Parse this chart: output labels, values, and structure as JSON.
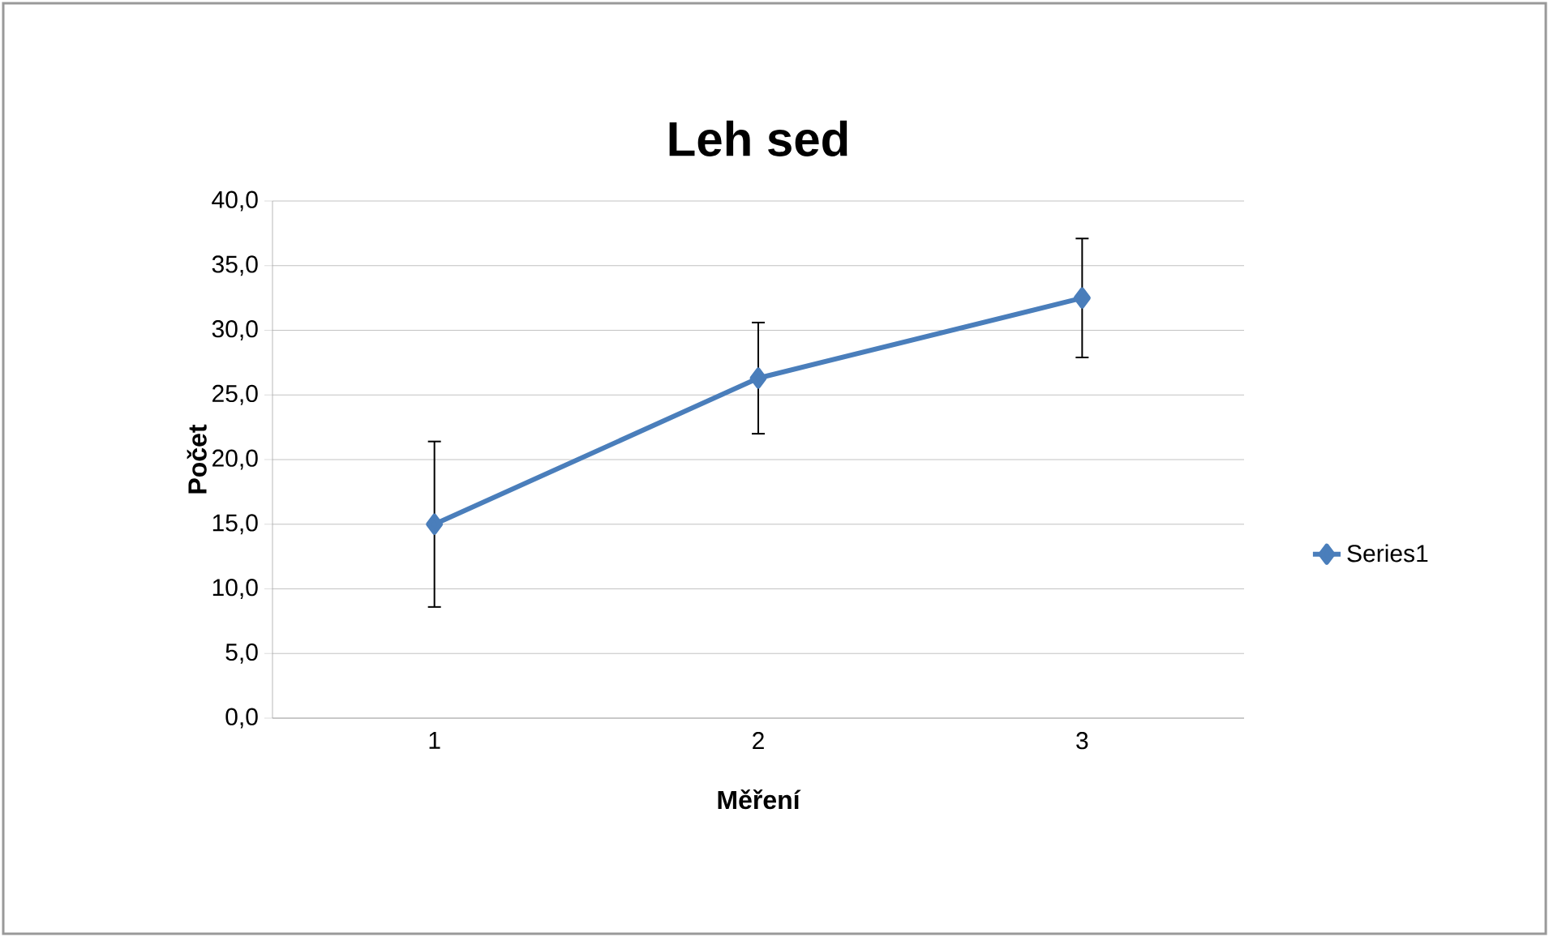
{
  "chart_data": {
    "type": "line",
    "title": "Leh sed",
    "xlabel": "Měření",
    "ylabel": "Počet",
    "categories": [
      "1",
      "2",
      "3"
    ],
    "series": [
      {
        "name": "Series1",
        "color": "#4a7ebb",
        "values": [
          15.0,
          26.3,
          32.5
        ],
        "errors": [
          6.4,
          4.3,
          4.6
        ]
      }
    ],
    "ylim": [
      0,
      40
    ],
    "yticks": [
      {
        "value": 0,
        "label": "0,0"
      },
      {
        "value": 5,
        "label": "5,0"
      },
      {
        "value": 10,
        "label": "10,0"
      },
      {
        "value": 15,
        "label": "15,0"
      },
      {
        "value": 20,
        "label": "20,0"
      },
      {
        "value": 25,
        "label": "25,0"
      },
      {
        "value": 30,
        "label": "30,0"
      },
      {
        "value": 35,
        "label": "35,0"
      },
      {
        "value": 40,
        "label": "40,0"
      }
    ],
    "grid": "y",
    "legend": "right",
    "marker": "diamond",
    "line_style": "solid"
  }
}
